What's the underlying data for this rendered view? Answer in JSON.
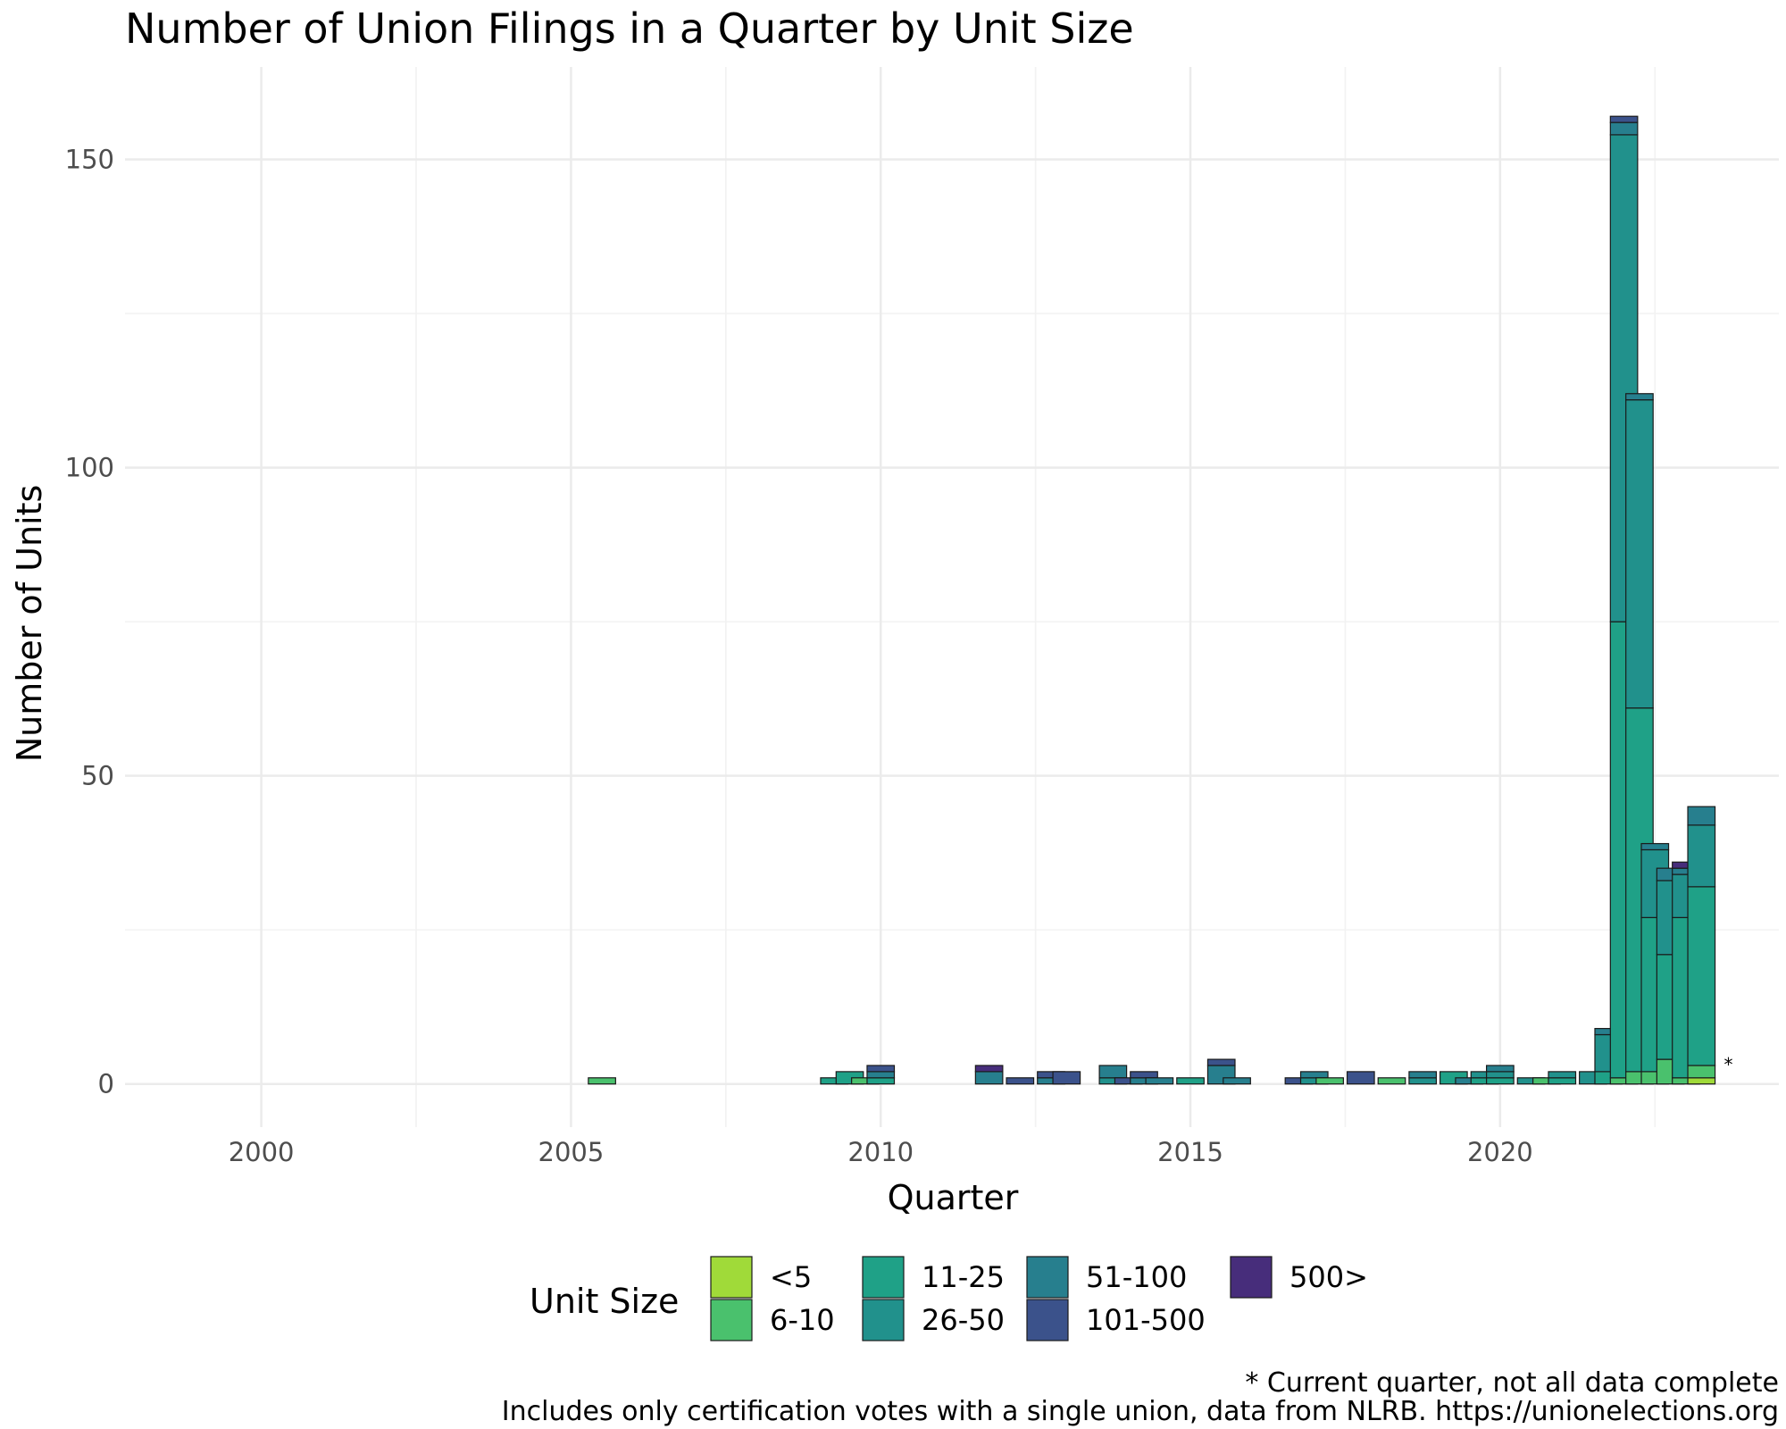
{
  "chart_data": {
    "type": "bar",
    "stacked": true,
    "title": "Number of Union Filings in a Quarter by Unit Size",
    "xlabel": "Quarter",
    "ylabel": "Number of Units",
    "xlim": [
      1997.8,
      2024.5
    ],
    "ylim": [
      -7,
      165
    ],
    "x_ticks": [
      2000,
      2005,
      2010,
      2015,
      2020
    ],
    "y_ticks": [
      0,
      50,
      100,
      150
    ],
    "grid": true,
    "legend": {
      "title": "Unit Size",
      "placement": "bottom",
      "entries": [
        "<5",
        "6-10",
        "11-25",
        "26-50",
        "51-100",
        "101-500",
        "500>"
      ]
    },
    "annotation": "*",
    "footnote": "* Current quarter, not all data complete",
    "caption": "Includes only certification votes with a single union, data from NLRB. https://unionelections.org",
    "colors": {
      "<5": "#a0da39",
      "6-10": "#4ac16d",
      "11-25": "#1fa187",
      "26-50": "#21918c",
      "51-100": "#277f8e",
      "101-500": "#3b528b",
      "500>": "#472d7b"
    },
    "quarters": [
      {
        "x": 2005.5,
        "counts": {
          "<5": 0,
          "6-10": 1,
          "11-25": 0,
          "26-50": 0,
          "51-100": 0,
          "101-500": 0,
          "500>": 0
        }
      },
      {
        "x": 2009.25,
        "counts": {
          "<5": 0,
          "6-10": 0,
          "11-25": 1,
          "26-50": 0,
          "51-100": 0,
          "101-500": 0,
          "500>": 0
        }
      },
      {
        "x": 2009.5,
        "counts": {
          "<5": 0,
          "6-10": 0,
          "11-25": 2,
          "26-50": 0,
          "51-100": 0,
          "101-500": 0,
          "500>": 0
        }
      },
      {
        "x": 2009.75,
        "counts": {
          "<5": 0,
          "6-10": 1,
          "11-25": 0,
          "26-50": 0,
          "51-100": 0,
          "101-500": 0,
          "500>": 0
        }
      },
      {
        "x": 2010.0,
        "counts": {
          "<5": 0,
          "6-10": 0,
          "11-25": 1,
          "26-50": 0,
          "51-100": 1,
          "101-500": 1,
          "500>": 0
        }
      },
      {
        "x": 2011.75,
        "counts": {
          "<5": 0,
          "6-10": 0,
          "11-25": 0,
          "26-50": 0,
          "51-100": 2,
          "101-500": 0,
          "500>": 1
        }
      },
      {
        "x": 2012.25,
        "counts": {
          "<5": 0,
          "6-10": 0,
          "11-25": 0,
          "26-50": 0,
          "51-100": 0,
          "101-500": 1,
          "500>": 0
        }
      },
      {
        "x": 2012.75,
        "counts": {
          "<5": 0,
          "6-10": 0,
          "11-25": 0,
          "26-50": 0,
          "51-100": 1,
          "101-500": 1,
          "500>": 0
        }
      },
      {
        "x": 2013.0,
        "counts": {
          "<5": 0,
          "6-10": 0,
          "11-25": 0,
          "26-50": 0,
          "51-100": 0,
          "101-500": 2,
          "500>": 0
        }
      },
      {
        "x": 2013.75,
        "counts": {
          "<5": 0,
          "6-10": 0,
          "11-25": 0,
          "26-50": 1,
          "51-100": 2,
          "101-500": 0,
          "500>": 0
        }
      },
      {
        "x": 2014.0,
        "counts": {
          "<5": 0,
          "6-10": 0,
          "11-25": 0,
          "26-50": 0,
          "51-100": 0,
          "101-500": 1,
          "500>": 0
        }
      },
      {
        "x": 2014.25,
        "counts": {
          "<5": 0,
          "6-10": 0,
          "11-25": 0,
          "26-50": 0,
          "51-100": 1,
          "101-500": 1,
          "500>": 0
        }
      },
      {
        "x": 2014.5,
        "counts": {
          "<5": 0,
          "6-10": 0,
          "11-25": 0,
          "26-50": 0,
          "51-100": 1,
          "101-500": 0,
          "500>": 0
        }
      },
      {
        "x": 2015.0,
        "counts": {
          "<5": 0,
          "6-10": 0,
          "11-25": 1,
          "26-50": 0,
          "51-100": 0,
          "101-500": 0,
          "500>": 0
        }
      },
      {
        "x": 2015.5,
        "counts": {
          "<5": 0,
          "6-10": 0,
          "11-25": 0,
          "26-50": 0,
          "51-100": 3,
          "101-500": 1,
          "500>": 0
        }
      },
      {
        "x": 2015.75,
        "counts": {
          "<5": 0,
          "6-10": 0,
          "11-25": 0,
          "26-50": 0,
          "51-100": 1,
          "101-500": 0,
          "500>": 0
        }
      },
      {
        "x": 2016.75,
        "counts": {
          "<5": 0,
          "6-10": 0,
          "11-25": 0,
          "26-50": 0,
          "51-100": 0,
          "101-500": 1,
          "500>": 0
        }
      },
      {
        "x": 2017.0,
        "counts": {
          "<5": 0,
          "6-10": 0,
          "11-25": 0,
          "26-50": 1,
          "51-100": 1,
          "101-500": 0,
          "500>": 0
        }
      },
      {
        "x": 2017.25,
        "counts": {
          "<5": 0,
          "6-10": 1,
          "11-25": 0,
          "26-50": 0,
          "51-100": 0,
          "101-500": 0,
          "500>": 0
        }
      },
      {
        "x": 2017.75,
        "counts": {
          "<5": 0,
          "6-10": 0,
          "11-25": 0,
          "26-50": 0,
          "51-100": 0,
          "101-500": 2,
          "500>": 0
        }
      },
      {
        "x": 2018.25,
        "counts": {
          "<5": 0,
          "6-10": 1,
          "11-25": 0,
          "26-50": 0,
          "51-100": 0,
          "101-500": 0,
          "500>": 0
        }
      },
      {
        "x": 2018.75,
        "counts": {
          "<5": 0,
          "6-10": 0,
          "11-25": 0,
          "26-50": 1,
          "51-100": 1,
          "101-500": 0,
          "500>": 0
        }
      },
      {
        "x": 2019.25,
        "counts": {
          "<5": 0,
          "6-10": 0,
          "11-25": 2,
          "26-50": 0,
          "51-100": 0,
          "101-500": 0,
          "500>": 0
        }
      },
      {
        "x": 2019.5,
        "counts": {
          "<5": 0,
          "6-10": 0,
          "11-25": 0,
          "26-50": 0,
          "51-100": 1,
          "101-500": 0,
          "500>": 0
        }
      },
      {
        "x": 2019.75,
        "counts": {
          "<5": 0,
          "6-10": 0,
          "11-25": 1,
          "26-50": 1,
          "51-100": 0,
          "101-500": 0,
          "500>": 0
        }
      },
      {
        "x": 2020.0,
        "counts": {
          "<5": 0,
          "6-10": 0,
          "11-25": 1,
          "26-50": 1,
          "51-100": 1,
          "101-500": 0,
          "500>": 0
        }
      },
      {
        "x": 2020.5,
        "counts": {
          "<5": 0,
          "6-10": 0,
          "11-25": 0,
          "26-50": 1,
          "51-100": 0,
          "101-500": 0,
          "500>": 0
        }
      },
      {
        "x": 2020.75,
        "counts": {
          "<5": 0,
          "6-10": 1,
          "11-25": 0,
          "26-50": 0,
          "51-100": 0,
          "101-500": 0,
          "500>": 0
        }
      },
      {
        "x": 2021.0,
        "counts": {
          "<5": 0,
          "6-10": 0,
          "11-25": 1,
          "26-50": 1,
          "51-100": 0,
          "101-500": 0,
          "500>": 0
        }
      },
      {
        "x": 2021.5,
        "counts": {
          "<5": 0,
          "6-10": 0,
          "11-25": 0,
          "26-50": 2,
          "51-100": 0,
          "101-500": 0,
          "500>": 0
        }
      },
      {
        "x": 2021.75,
        "counts": {
          "<5": 0,
          "6-10": 0,
          "11-25": 2,
          "26-50": 6,
          "51-100": 1,
          "101-500": 0,
          "500>": 0
        }
      },
      {
        "x": 2022.0,
        "counts": {
          "<5": 0,
          "6-10": 1,
          "11-25": 74,
          "26-50": 79,
          "51-100": 2,
          "101-500": 1,
          "500>": 0
        }
      },
      {
        "x": 2022.25,
        "counts": {
          "<5": 0,
          "6-10": 2,
          "11-25": 59,
          "26-50": 50,
          "51-100": 1,
          "101-500": 0,
          "500>": 0
        }
      },
      {
        "x": 2022.5,
        "counts": {
          "<5": 0,
          "6-10": 2,
          "11-25": 25,
          "26-50": 11,
          "51-100": 1,
          "101-500": 0,
          "500>": 0
        }
      },
      {
        "x": 2022.75,
        "counts": {
          "<5": 0,
          "6-10": 4,
          "11-25": 17,
          "26-50": 12,
          "51-100": 2,
          "101-500": 0,
          "500>": 0
        }
      },
      {
        "x": 2023.0,
        "counts": {
          "<5": 0,
          "6-10": 1,
          "11-25": 26,
          "26-50": 7,
          "51-100": 1,
          "101-500": 0,
          "500>": 1
        }
      },
      {
        "x": 2023.25,
        "counts": {
          "<5": 1,
          "6-10": 2,
          "11-25": 29,
          "26-50": 10,
          "51-100": 3,
          "101-500": 0,
          "500>": 0
        }
      }
    ]
  }
}
